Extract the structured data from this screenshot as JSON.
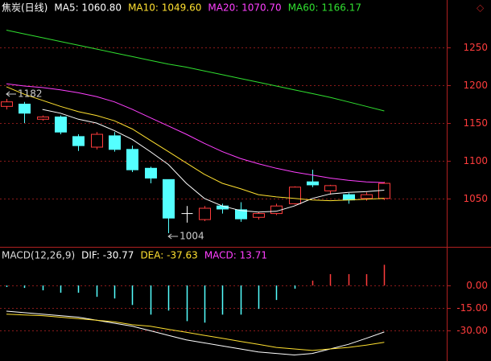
{
  "chart_data": [
    {
      "type": "candlestick",
      "title": "焦炭(日线)",
      "ylim": [
        988,
        1313
      ],
      "yticks": [
        1050,
        1100,
        1150,
        1200,
        1250
      ],
      "grid": true,
      "up_color": "#ff3c3c",
      "down_color": "#54ffff",
      "flat_color": "#ffffff",
      "candles": [
        {
          "open": 1172,
          "high": 1182,
          "low": 1168,
          "close": 1178
        },
        {
          "open": 1175,
          "high": 1178,
          "low": 1150,
          "close": 1163
        },
        {
          "open": 1155,
          "high": 1160,
          "low": 1153,
          "close": 1158
        },
        {
          "open": 1158,
          "high": 1160,
          "low": 1135,
          "close": 1138
        },
        {
          "open": 1132,
          "high": 1135,
          "low": 1113,
          "close": 1120
        },
        {
          "open": 1118,
          "high": 1138,
          "low": 1115,
          "close": 1135
        },
        {
          "open": 1133,
          "high": 1138,
          "low": 1112,
          "close": 1115
        },
        {
          "open": 1115,
          "high": 1120,
          "low": 1085,
          "close": 1088
        },
        {
          "open": 1090,
          "high": 1092,
          "low": 1070,
          "close": 1077
        },
        {
          "open": 1075,
          "high": 1075,
          "low": 1004,
          "close": 1024
        },
        {
          "open": 1030,
          "high": 1040,
          "low": 1018,
          "close": 1030
        },
        {
          "open": 1022,
          "high": 1040,
          "low": 1020,
          "close": 1037
        },
        {
          "open": 1040,
          "high": 1043,
          "low": 1030,
          "close": 1036
        },
        {
          "open": 1035,
          "high": 1045,
          "low": 1019,
          "close": 1023
        },
        {
          "open": 1025,
          "high": 1032,
          "low": 1022,
          "close": 1030
        },
        {
          "open": 1030,
          "high": 1043,
          "low": 1028,
          "close": 1040
        },
        {
          "open": 1043,
          "high": 1066,
          "low": 1042,
          "close": 1065
        },
        {
          "open": 1072,
          "high": 1088,
          "low": 1065,
          "close": 1068
        },
        {
          "open": 1060,
          "high": 1068,
          "low": 1055,
          "close": 1067
        },
        {
          "open": 1055,
          "high": 1057,
          "low": 1043,
          "close": 1048
        },
        {
          "open": 1050,
          "high": 1058,
          "low": 1047,
          "close": 1055
        },
        {
          "open": 1050,
          "high": 1072,
          "low": 1048,
          "close": 1070
        }
      ],
      "annotations": [
        1182,
        1004
      ],
      "series": [
        {
          "name": "MA5: 1060.80",
          "color": "#ffffff",
          "values": [
            null,
            null,
            1168,
            1163,
            1155,
            1150,
            1140,
            1128,
            1112,
            1095,
            1070,
            1050,
            1040,
            1034,
            1032,
            1033,
            1040,
            1050,
            1056,
            1058,
            1059,
            1061
          ]
        },
        {
          "name": "MA10: 1049.60",
          "color": "#ffe030",
          "values": [
            1198,
            1188,
            1180,
            1172,
            1165,
            1160,
            1153,
            1142,
            1127,
            1112,
            1097,
            1082,
            1070,
            1063,
            1055,
            1052,
            1050,
            1048,
            1047,
            1048,
            1049,
            1050
          ]
        },
        {
          "name": "MA20: 1070.70",
          "color": "#ff40ff",
          "values": [
            1202,
            1199,
            1197,
            1194,
            1190,
            1185,
            1178,
            1168,
            1157,
            1146,
            1135,
            1123,
            1112,
            1103,
            1096,
            1090,
            1085,
            1081,
            1077,
            1074,
            1072,
            1071
          ]
        },
        {
          "name": "MA60: 1166.17",
          "color": "#30e030",
          "values": [
            1273,
            1268,
            1263,
            1258,
            1253,
            1248,
            1243,
            1238,
            1233,
            1228,
            1224,
            1219,
            1214,
            1209,
            1204,
            1199,
            1194,
            1189,
            1184,
            1178,
            1172,
            1166
          ]
        }
      ]
    },
    {
      "type": "macd",
      "title": "MACD(12,26,9)",
      "ylim": [
        -50,
        24
      ],
      "yticks": [
        {
          "value": 0,
          "label": "0.00"
        },
        {
          "value": -15,
          "label": "-15.00"
        },
        {
          "value": -30,
          "label": "-30.00"
        }
      ],
      "grid": true,
      "histogram": {
        "name": "MACD: 13.71",
        "pos_color": "#ff3c3c",
        "neg_color": "#54ffff",
        "values": [
          -1.0,
          -1.6,
          -3.2,
          -4.8,
          -4.8,
          -7.5,
          -8.6,
          -12.9,
          -19.3,
          -16.6,
          -23.6,
          -24.6,
          -19.3,
          -19.3,
          -15.5,
          -9.6,
          -2.1,
          3.2,
          7.5,
          7.5,
          7.5,
          13.71
        ]
      },
      "series": [
        {
          "name": "DIF: -30.77",
          "color": "#ffffff",
          "values": [
            -17,
            -18,
            -19,
            -20,
            -21,
            -23,
            -25,
            -27,
            -30,
            -33,
            -36,
            -38,
            -40,
            -42,
            -44,
            -45,
            -46,
            -45,
            -42,
            -39,
            -35,
            -30.77
          ]
        },
        {
          "name": "DEA: -37.63",
          "color": "#ffe030",
          "values": [
            -19,
            -19.5,
            -20,
            -21,
            -22,
            -23,
            -24,
            -26,
            -27,
            -29,
            -31,
            -33,
            -35,
            -37,
            -39,
            -41,
            -42,
            -43,
            -42,
            -41,
            -39.5,
            -37.63
          ]
        }
      ]
    }
  ]
}
